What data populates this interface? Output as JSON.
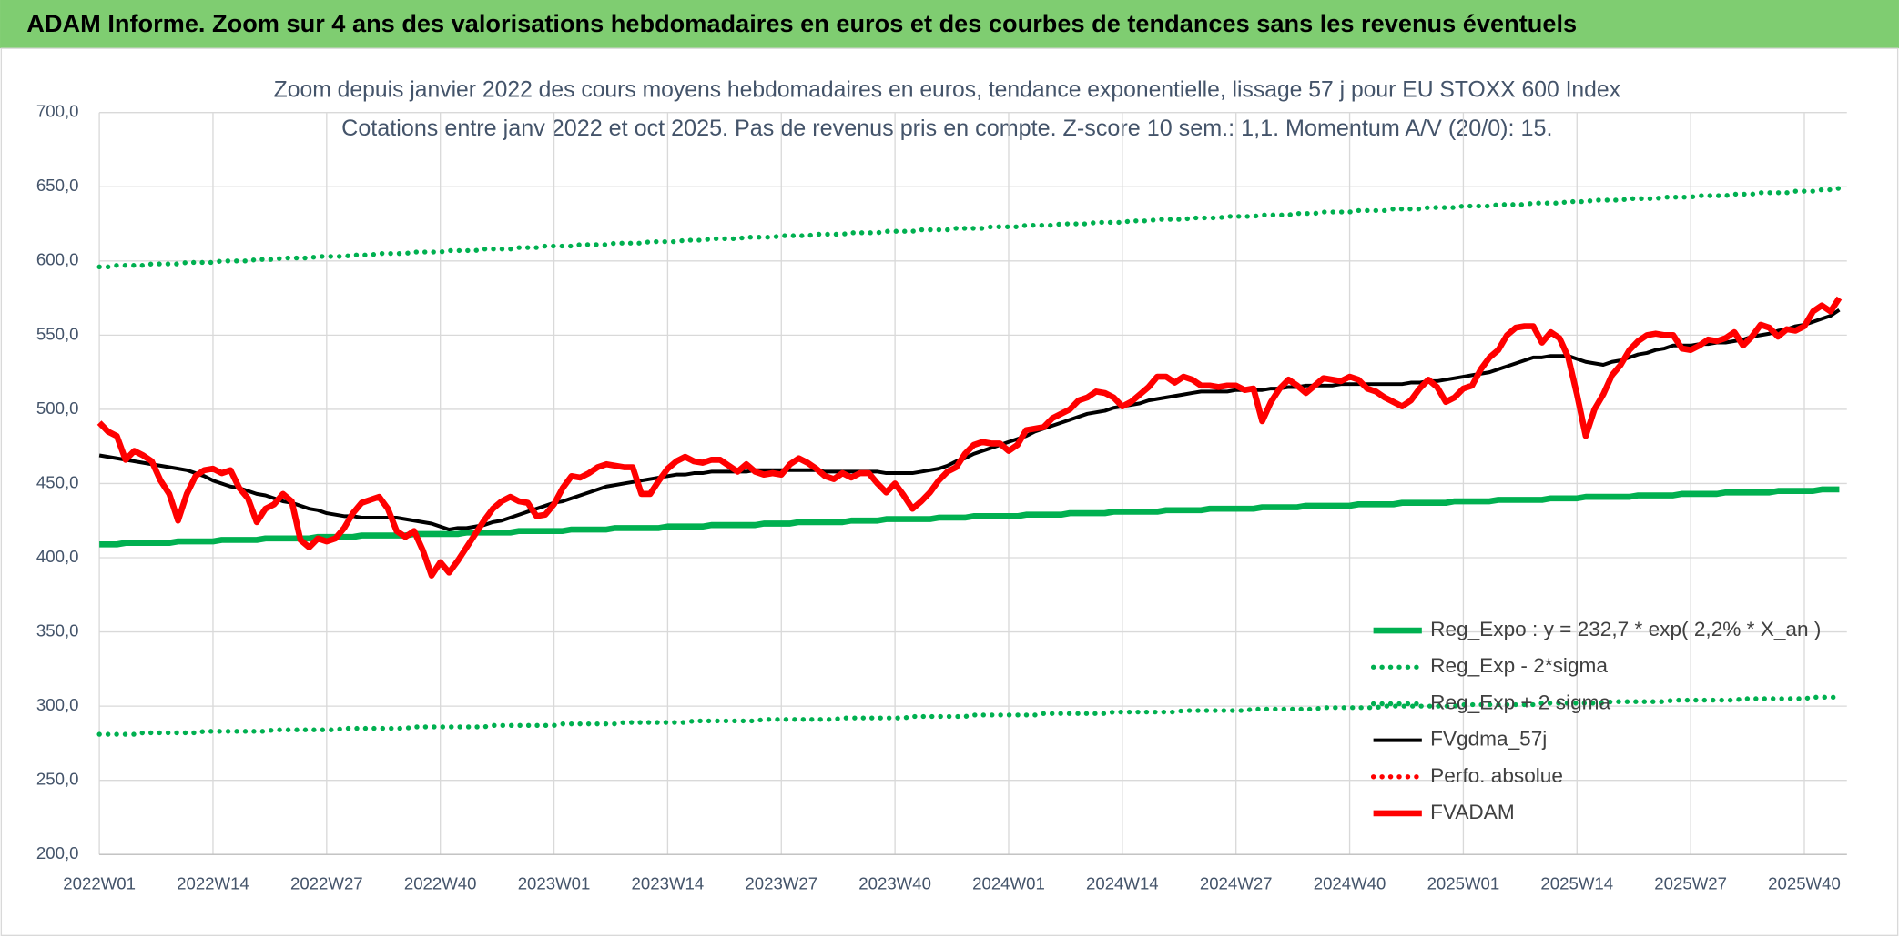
{
  "header": {
    "title": "ADAM Informe. Zoom sur 4 ans des valorisations hebdomadaires en euros et des courbes de tendances sans les revenus éventuels"
  },
  "chart_data": {
    "type": "line",
    "title": "Zoom depuis janvier 2022 des cours moyens hebdomadaires en euros, tendance exponentielle, lissage 57 j pour EU STOXX 600 Index",
    "subtitle": "Cotations entre janv 2022 et oct 2025. Pas de revenus pris en compte. Z-score 10 sem.: 1,1. Momentum A/V (20/0): 15.",
    "categories": [
      "2022W01",
      null,
      null,
      null,
      null,
      null,
      null,
      null,
      null,
      null,
      null,
      null,
      null,
      "2022W14",
      null,
      null,
      null,
      null,
      null,
      null,
      null,
      null,
      null,
      null,
      null,
      null,
      "2022W27",
      null,
      null,
      null,
      null,
      null,
      null,
      null,
      null,
      null,
      null,
      null,
      null,
      "2022W40",
      null,
      null,
      null,
      null,
      null,
      null,
      null,
      null,
      null,
      null,
      null,
      null,
      "2023W01",
      null,
      null,
      null,
      null,
      null,
      null,
      null,
      null,
      null,
      null,
      null,
      null,
      "2023W14",
      null,
      null,
      null,
      null,
      null,
      null,
      null,
      null,
      null,
      null,
      null,
      null,
      "2023W27",
      null,
      null,
      null,
      null,
      null,
      null,
      null,
      null,
      null,
      null,
      null,
      null,
      "2023W40",
      null,
      null,
      null,
      null,
      null,
      null,
      null,
      null,
      null,
      null,
      null,
      null,
      "2024W01",
      null,
      null,
      null,
      null,
      null,
      null,
      null,
      null,
      null,
      null,
      null,
      null,
      "2024W14",
      null,
      null,
      null,
      null,
      null,
      null,
      null,
      null,
      null,
      null,
      null,
      null,
      "2024W27",
      null,
      null,
      null,
      null,
      null,
      null,
      null,
      null,
      null,
      null,
      null,
      null,
      "2024W40",
      null,
      null,
      null,
      null,
      null,
      null,
      null,
      null,
      null,
      null,
      null,
      null,
      "2025W01",
      null,
      null,
      null,
      null,
      null,
      null,
      null,
      null,
      null,
      null,
      null,
      null,
      "2025W14",
      null,
      null,
      null,
      null,
      null,
      null,
      null,
      null,
      null,
      null,
      null,
      null,
      "2025W27",
      null,
      null,
      null,
      null,
      null,
      null,
      null,
      null,
      null,
      null,
      null,
      null,
      "2025W40",
      null,
      null,
      null,
      null
    ],
    "ylim": [
      200,
      700
    ],
    "yticks": [
      {
        "value": 200,
        "label": "200,0"
      },
      {
        "value": 250,
        "label": "250,0"
      },
      {
        "value": 300,
        "label": "300,0"
      },
      {
        "value": 350,
        "label": "350,0"
      },
      {
        "value": 400,
        "label": "400,0"
      },
      {
        "value": 450,
        "label": "450,0"
      },
      {
        "value": 500,
        "label": "500,0"
      },
      {
        "value": 550,
        "label": "550,0"
      },
      {
        "value": 600,
        "label": "600,0"
      },
      {
        "value": 650,
        "label": "650,0"
      },
      {
        "value": 700,
        "label": "700,0"
      }
    ],
    "grid": true,
    "legend": "bottom-right",
    "series": [
      {
        "name": "Reg_Expo : y = 232,7 * exp( 2,2% *  X_an )",
        "color": "#00b050",
        "style": "solid",
        "values": [
          409,
          409,
          409,
          410,
          410,
          410,
          410,
          410,
          410,
          411,
          411,
          411,
          411,
          411,
          412,
          412,
          412,
          412,
          412,
          413,
          413,
          413,
          413,
          413,
          413,
          414,
          414,
          414,
          414,
          414,
          415,
          415,
          415,
          415,
          415,
          415,
          416,
          416,
          416,
          416,
          416,
          416,
          417,
          417,
          417,
          417,
          417,
          417,
          418,
          418,
          418,
          418,
          418,
          418,
          419,
          419,
          419,
          419,
          419,
          420,
          420,
          420,
          420,
          420,
          420,
          421,
          421,
          421,
          421,
          421,
          422,
          422,
          422,
          422,
          422,
          422,
          423,
          423,
          423,
          423,
          424,
          424,
          424,
          424,
          424,
          424,
          425,
          425,
          425,
          425,
          426,
          426,
          426,
          426,
          426,
          426,
          427,
          427,
          427,
          427,
          428,
          428,
          428,
          428,
          428,
          428,
          429,
          429,
          429,
          429,
          429,
          430,
          430,
          430,
          430,
          430,
          431,
          431,
          431,
          431,
          431,
          431,
          432,
          432,
          432,
          432,
          432,
          433,
          433,
          433,
          433,
          433,
          433,
          434,
          434,
          434,
          434,
          434,
          435,
          435,
          435,
          435,
          435,
          435,
          436,
          436,
          436,
          436,
          436,
          437,
          437,
          437,
          437,
          437,
          437,
          438,
          438,
          438,
          438,
          438,
          439,
          439,
          439,
          439,
          439,
          439,
          440,
          440,
          440,
          440,
          441,
          441,
          441,
          441,
          441,
          441,
          442,
          442,
          442,
          442,
          442,
          443,
          443,
          443,
          443,
          443,
          444,
          444,
          444,
          444,
          444,
          444,
          445,
          445,
          445,
          445,
          445,
          446,
          446,
          446
        ]
      },
      {
        "name": "Reg_Exp - 2*sigma",
        "color": "#00b050",
        "style": "dotted",
        "values": [
          281,
          281,
          281,
          281,
          281,
          282,
          282,
          282,
          282,
          282,
          282,
          282,
          283,
          283,
          283,
          283,
          283,
          283,
          283,
          283,
          284,
          284,
          284,
          284,
          284,
          284,
          284,
          284,
          285,
          285,
          285,
          285,
          285,
          285,
          285,
          285,
          286,
          286,
          286,
          286,
          286,
          286,
          286,
          286,
          286,
          287,
          287,
          287,
          287,
          287,
          287,
          287,
          287,
          288,
          288,
          288,
          288,
          288,
          288,
          288,
          289,
          289,
          289,
          289,
          289,
          289,
          289,
          289,
          290,
          290,
          290,
          290,
          290,
          290,
          290,
          290,
          291,
          291,
          291,
          291,
          291,
          291,
          291,
          291,
          291,
          292,
          292,
          292,
          292,
          292,
          292,
          292,
          292,
          293,
          293,
          293,
          293,
          293,
          293,
          293,
          294,
          294,
          294,
          294,
          294,
          294,
          294,
          294,
          295,
          295,
          295,
          295,
          295,
          295,
          295,
          295,
          296,
          296,
          296,
          296,
          296,
          296,
          296,
          296,
          297,
          297,
          297,
          297,
          297,
          297,
          297,
          297,
          298,
          298,
          298,
          298,
          298,
          298,
          298,
          298,
          299,
          299,
          299,
          299,
          299,
          299,
          299,
          300,
          300,
          300,
          300,
          300,
          300,
          300,
          300,
          300,
          301,
          301,
          301,
          301,
          301,
          301,
          301,
          301,
          301,
          302,
          302,
          302,
          302,
          302,
          302,
          302,
          302,
          303,
          303,
          303,
          303,
          303,
          303,
          303,
          304,
          304,
          304,
          304,
          304,
          304,
          304,
          304,
          305,
          305,
          305,
          305,
          305,
          305,
          305,
          305,
          306,
          306,
          306,
          306
        ]
      },
      {
        "name": "Reg_Exp + 2 sigma",
        "color": "#00b050",
        "style": "dotted",
        "values": [
          596,
          596,
          597,
          597,
          597,
          597,
          598,
          598,
          598,
          598,
          599,
          599,
          599,
          599,
          600,
          600,
          600,
          600,
          601,
          601,
          601,
          602,
          602,
          602,
          602,
          603,
          603,
          603,
          603,
          604,
          604,
          604,
          605,
          605,
          605,
          605,
          606,
          606,
          606,
          606,
          607,
          607,
          607,
          607,
          608,
          608,
          608,
          608,
          609,
          609,
          609,
          610,
          610,
          610,
          610,
          611,
          611,
          611,
          611,
          612,
          612,
          612,
          612,
          613,
          613,
          613,
          613,
          614,
          614,
          614,
          615,
          615,
          615,
          615,
          616,
          616,
          616,
          616,
          617,
          617,
          617,
          617,
          618,
          618,
          618,
          618,
          619,
          619,
          619,
          619,
          620,
          620,
          620,
          620,
          621,
          621,
          621,
          621,
          622,
          622,
          622,
          622,
          623,
          623,
          623,
          623,
          624,
          624,
          624,
          624,
          625,
          625,
          625,
          625,
          626,
          626,
          626,
          626,
          627,
          627,
          627,
          628,
          628,
          628,
          628,
          629,
          629,
          629,
          629,
          630,
          630,
          630,
          630,
          631,
          631,
          631,
          631,
          632,
          632,
          632,
          633,
          633,
          633,
          633,
          634,
          634,
          634,
          634,
          635,
          635,
          635,
          635,
          636,
          636,
          636,
          636,
          637,
          637,
          637,
          637,
          638,
          638,
          638,
          638,
          639,
          639,
          639,
          639,
          640,
          640,
          640,
          641,
          641,
          641,
          641,
          642,
          642,
          642,
          642,
          643,
          643,
          643,
          643,
          644,
          644,
          644,
          644,
          645,
          645,
          645,
          646,
          646,
          646,
          646,
          647,
          647,
          647,
          648,
          648,
          649
        ]
      },
      {
        "name": "FVgdma_57j",
        "color": "#000000",
        "style": "solid",
        "values": [
          469,
          468,
          467,
          466,
          465,
          464,
          463,
          462,
          461,
          460,
          459,
          457,
          455,
          452,
          450,
          448,
          447,
          445,
          443,
          442,
          440,
          438,
          437,
          435,
          433,
          432,
          430,
          429,
          428,
          428,
          427,
          427,
          427,
          427,
          427,
          426,
          425,
          424,
          423,
          421,
          419,
          420,
          420,
          421,
          422,
          424,
          425,
          427,
          429,
          431,
          433,
          435,
          437,
          438,
          440,
          442,
          444,
          446,
          448,
          449,
          450,
          451,
          452,
          453,
          454,
          455,
          456,
          456,
          457,
          457,
          458,
          458,
          458,
          458,
          458,
          459,
          459,
          459,
          459,
          459,
          459,
          459,
          459,
          458,
          458,
          458,
          458,
          458,
          458,
          458,
          457,
          457,
          457,
          457,
          458,
          459,
          460,
          462,
          465,
          467,
          470,
          472,
          474,
          476,
          478,
          480,
          482,
          485,
          487,
          489,
          491,
          493,
          495,
          497,
          498,
          499,
          501,
          502,
          503,
          504,
          506,
          507,
          508,
          509,
          510,
          511,
          512,
          512,
          512,
          512,
          513,
          513,
          513,
          513,
          514,
          514,
          515,
          515,
          516,
          516,
          516,
          516,
          517,
          517,
          517,
          517,
          517,
          517,
          517,
          517,
          518,
          518,
          519,
          519,
          520,
          521,
          522,
          523,
          524,
          525,
          527,
          529,
          531,
          533,
          535,
          535,
          536,
          536,
          536,
          534,
          532,
          531,
          530,
          532,
          533,
          535,
          537,
          538,
          540,
          541,
          543,
          543,
          543,
          544,
          544,
          545,
          545,
          546,
          547,
          549,
          550,
          551,
          553,
          554,
          556,
          557,
          559,
          561,
          563,
          567
        ]
      },
      {
        "name": "Perfo. absolue",
        "color": "#ff0000",
        "style": "dotted"
      },
      {
        "name": "FVADAM",
        "color": "#ff0000",
        "style": "solid",
        "values": [
          491,
          485,
          482,
          466,
          472,
          469,
          465,
          452,
          443,
          425,
          443,
          455,
          459,
          460,
          457,
          459,
          447,
          440,
          424,
          433,
          436,
          443,
          438,
          412,
          407,
          413,
          411,
          413,
          420,
          430,
          437,
          439,
          441,
          433,
          418,
          414,
          418,
          405,
          388,
          397,
          390,
          398,
          407,
          416,
          425,
          433,
          438,
          441,
          438,
          437,
          428,
          429,
          436,
          447,
          455,
          454,
          457,
          461,
          463,
          462,
          461,
          461,
          443,
          443,
          452,
          460,
          465,
          468,
          465,
          464,
          466,
          466,
          462,
          458,
          463,
          458,
          456,
          457,
          456,
          463,
          467,
          464,
          460,
          455,
          453,
          457,
          454,
          457,
          457,
          450,
          444,
          450,
          442,
          433,
          438,
          444,
          452,
          458,
          461,
          470,
          476,
          478,
          477,
          477,
          472,
          476,
          486,
          487,
          488,
          494,
          497,
          500,
          506,
          508,
          512,
          511,
          508,
          502,
          505,
          510,
          515,
          522,
          522,
          518,
          522,
          520,
          516,
          516,
          515,
          516,
          516,
          513,
          514,
          492,
          505,
          514,
          520,
          516,
          511,
          516,
          521,
          520,
          519,
          522,
          520,
          514,
          512,
          508,
          505,
          502,
          506,
          514,
          520,
          515,
          505,
          508,
          514,
          516,
          527,
          535,
          540,
          550,
          555,
          556,
          556,
          545,
          552,
          548,
          535,
          510,
          482,
          500,
          510,
          523,
          530,
          540,
          546,
          550,
          551,
          550,
          550,
          541,
          540,
          543,
          547,
          546,
          548,
          552,
          543,
          549,
          557,
          555,
          549,
          554,
          553,
          556,
          566,
          570,
          566,
          575
        ]
      }
    ]
  }
}
